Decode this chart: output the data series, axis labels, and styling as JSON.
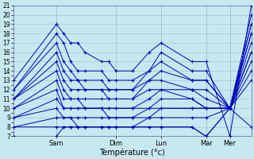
{
  "xlabel": "Température (°c)",
  "bg_color": "#c8e8f0",
  "grid_color": "#aaccdd",
  "line_color": "#0000bb",
  "ylim": [
    7,
    21
  ],
  "xlim": [
    0,
    100
  ],
  "yticks": [
    7,
    8,
    9,
    10,
    11,
    12,
    13,
    14,
    15,
    16,
    17,
    18,
    19,
    20,
    21
  ],
  "vlines": [
    18,
    43,
    62,
    81,
    91
  ],
  "day_ticks": [
    18,
    43,
    62,
    81,
    91
  ],
  "day_labels": [
    "Sam",
    "Dim",
    "Lun",
    "Mar",
    "Mer"
  ],
  "series": [
    [
      13,
      19,
      18,
      17,
      17,
      16,
      15,
      15,
      14,
      14,
      16,
      17,
      15,
      15,
      7,
      21
    ],
    [
      12,
      18,
      17,
      15,
      14,
      14,
      14,
      13,
      13,
      13,
      14,
      16,
      14,
      14,
      10,
      20
    ],
    [
      12,
      17,
      15,
      14,
      13,
      13,
      13,
      12,
      12,
      12,
      14,
      15,
      13,
      13,
      10,
      19
    ],
    [
      11,
      16,
      14,
      13,
      13,
      12,
      12,
      12,
      12,
      12,
      13,
      14,
      13,
      13,
      10,
      19
    ],
    [
      11,
      15,
      13,
      12,
      12,
      12,
      12,
      11,
      11,
      11,
      13,
      13,
      12,
      12,
      10,
      18
    ],
    [
      11,
      14,
      12,
      11,
      11,
      11,
      11,
      11,
      11,
      11,
      12,
      12,
      12,
      11,
      10,
      18
    ],
    [
      10,
      13,
      11,
      11,
      11,
      10,
      10,
      10,
      10,
      10,
      11,
      12,
      11,
      10,
      10,
      17
    ],
    [
      10,
      12,
      10,
      10,
      10,
      10,
      10,
      10,
      10,
      10,
      10,
      11,
      11,
      10,
      10,
      16
    ],
    [
      9,
      11,
      10,
      10,
      10,
      10,
      10,
      9,
      9,
      9,
      10,
      10,
      10,
      10,
      10,
      16
    ],
    [
      9,
      10,
      9,
      9,
      9,
      9,
      9,
      9,
      9,
      9,
      9,
      10,
      10,
      10,
      10,
      15
    ],
    [
      8,
      9,
      9,
      9,
      8,
      8,
      8,
      8,
      8,
      8,
      9,
      9,
      9,
      9,
      10,
      14
    ],
    [
      8,
      8,
      8,
      8,
      8,
      8,
      8,
      8,
      8,
      8,
      8,
      8,
      8,
      7,
      10,
      13
    ],
    [
      7,
      7,
      8,
      8,
      8,
      8,
      8,
      8,
      8,
      8,
      8,
      8,
      8,
      7,
      10,
      8
    ]
  ],
  "x_positions": [
    0,
    18,
    21,
    24,
    27,
    30,
    37,
    40,
    43,
    50,
    57,
    62,
    75,
    81,
    91,
    100
  ]
}
